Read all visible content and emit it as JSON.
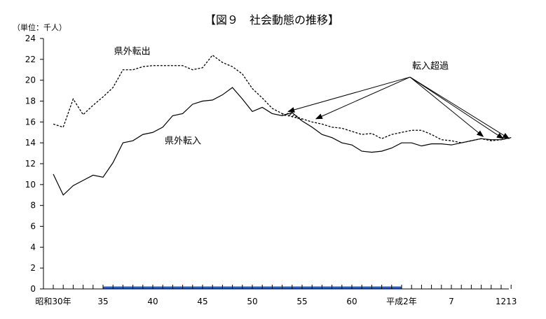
{
  "chart_data": {
    "type": "line",
    "title": "【図９　社会動態の推移】",
    "unit_label": "（単位：千人）",
    "xlabel": "",
    "ylabel": "",
    "ylim": [
      0,
      24
    ],
    "yticks": [
      0,
      2,
      4,
      6,
      8,
      10,
      12,
      14,
      16,
      18,
      20,
      22,
      24
    ],
    "x_tick_labels": [
      {
        "year": 1955,
        "label": "昭和30年"
      },
      {
        "year": 1960,
        "label": "35"
      },
      {
        "year": 1965,
        "label": "40"
      },
      {
        "year": 1970,
        "label": "45"
      },
      {
        "year": 1975,
        "label": "50"
      },
      {
        "year": 1980,
        "label": "55"
      },
      {
        "year": 1985,
        "label": "60"
      },
      {
        "year": 1990,
        "label": "平成2年"
      },
      {
        "year": 1995,
        "label": "7"
      },
      {
        "year": 2000,
        "label": "1213"
      }
    ],
    "x": [
      1955,
      1956,
      1957,
      1958,
      1959,
      1960,
      1961,
      1962,
      1963,
      1964,
      1965,
      1966,
      1967,
      1968,
      1969,
      1970,
      1971,
      1972,
      1973,
      1974,
      1975,
      1976,
      1977,
      1978,
      1979,
      1980,
      1981,
      1982,
      1983,
      1984,
      1985,
      1986,
      1987,
      1988,
      1989,
      1990,
      1991,
      1992,
      1993,
      1994,
      1995,
      1996,
      1997,
      1998,
      1999,
      2000,
      2001
    ],
    "series": [
      {
        "name": "県外転出",
        "style": "dashed",
        "values": [
          15.8,
          15.5,
          18.2,
          16.7,
          17.6,
          18.4,
          19.3,
          21.0,
          21.0,
          21.3,
          21.4,
          21.4,
          21.4,
          21.4,
          21.0,
          21.2,
          22.4,
          21.7,
          21.3,
          20.6,
          19.2,
          18.3,
          17.3,
          16.8,
          16.5,
          16.3,
          16.0,
          15.8,
          15.5,
          15.4,
          15.1,
          14.8,
          14.9,
          14.4,
          14.8,
          15.0,
          15.2,
          15.2,
          14.8,
          14.3,
          14.2,
          14.0,
          14.2,
          14.4,
          14.2,
          14.3,
          14.5
        ]
      },
      {
        "name": "県外転入",
        "style": "solid",
        "values": [
          11.0,
          9.0,
          9.9,
          10.4,
          10.9,
          10.7,
          12.1,
          14.0,
          14.2,
          14.8,
          15.0,
          15.5,
          16.6,
          16.8,
          17.7,
          18.0,
          18.1,
          18.6,
          19.3,
          18.2,
          17.0,
          17.4,
          16.8,
          16.6,
          16.9,
          16.1,
          15.5,
          14.8,
          14.5,
          14.0,
          13.8,
          13.2,
          13.1,
          13.2,
          13.5,
          14.0,
          14.0,
          13.7,
          13.9,
          13.9,
          13.8,
          14.0,
          14.2,
          14.4,
          14.3,
          14.3,
          14.5
        ]
      }
    ],
    "annotation": "転入超過",
    "grid": false,
    "legend": "none"
  }
}
